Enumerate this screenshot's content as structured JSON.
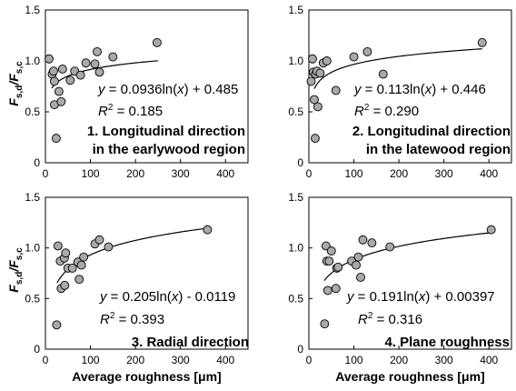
{
  "chart_data": [
    {
      "type": "scatter",
      "panel": "1",
      "caption": [
        "1. Longitudinal direction",
        "in the earlywood region"
      ],
      "equation": {
        "prefix": "y = 0.0936ln(",
        "var": "x",
        "suffix": ") + 0.485"
      },
      "r2": {
        "label": "R",
        "sup": "2",
        "value": " = 0.185"
      },
      "fit": {
        "a": 0.0936,
        "b": 0.485,
        "x_range": [
          14,
          250
        ]
      },
      "xlabel": "",
      "ylabel": {
        "main": "F",
        "sub1": "s,d",
        "slash": "/F",
        "sub2": "s,c"
      },
      "xlim": [
        0,
        450
      ],
      "ylim": [
        0,
        1.5
      ],
      "xticks": [
        "0",
        "100",
        "200",
        "300",
        "400"
      ],
      "yticks": [
        "0",
        "0.5",
        "1.0",
        "1.5"
      ],
      "points": [
        [
          8,
          1.02
        ],
        [
          15,
          0.87
        ],
        [
          18,
          0.9
        ],
        [
          20,
          0.57
        ],
        [
          20,
          0.8
        ],
        [
          24,
          0.24
        ],
        [
          30,
          0.7
        ],
        [
          35,
          0.6
        ],
        [
          38,
          0.92
        ],
        [
          55,
          0.81
        ],
        [
          65,
          0.9
        ],
        [
          78,
          0.86
        ],
        [
          90,
          0.98
        ],
        [
          110,
          0.97
        ],
        [
          115,
          1.09
        ],
        [
          120,
          0.89
        ],
        [
          150,
          1.04
        ],
        [
          248,
          1.18
        ]
      ]
    },
    {
      "type": "scatter",
      "panel": "2",
      "caption": [
        "2. Longitudinal direction",
        "in the latewood region"
      ],
      "equation": {
        "prefix": "y = 0.113ln(",
        "var": "x",
        "suffix": ") + 0.446"
      },
      "r2": {
        "label": "R",
        "sup": "2",
        "value": " = 0.290"
      },
      "fit": {
        "a": 0.113,
        "b": 0.446,
        "x_range": [
          12,
          385
        ]
      },
      "xlabel": "",
      "ylabel": {
        "main": "",
        "sub1": "",
        "slash": "",
        "sub2": ""
      },
      "xlim": [
        0,
        450
      ],
      "ylim": [
        0,
        1.5
      ],
      "xticks": [
        "0",
        "100",
        "200",
        "300",
        "400"
      ],
      "yticks": [
        "0",
        "0.5",
        "1.0",
        "1.5"
      ],
      "points": [
        [
          5,
          0.8
        ],
        [
          8,
          1.02
        ],
        [
          10,
          0.89
        ],
        [
          12,
          0.62
        ],
        [
          14,
          0.24
        ],
        [
          15,
          0.87
        ],
        [
          18,
          0.9
        ],
        [
          20,
          0.55
        ],
        [
          25,
          0.88
        ],
        [
          32,
          0.98
        ],
        [
          40,
          1.0
        ],
        [
          60,
          0.71
        ],
        [
          100,
          1.04
        ],
        [
          130,
          1.09
        ],
        [
          165,
          0.87
        ],
        [
          385,
          1.18
        ]
      ]
    },
    {
      "type": "scatter",
      "panel": "3",
      "caption": [
        "3. Radial direction"
      ],
      "equation": {
        "prefix": "y = 0.205ln(",
        "var": "x",
        "suffix": ") - 0.0119"
      },
      "r2": {
        "label": "R",
        "sup": "2",
        "value": " = 0.393"
      },
      "fit": {
        "a": 0.205,
        "b": -0.0119,
        "x_range": [
          26,
          360
        ]
      },
      "xlabel": "Average roughness [μm]",
      "ylabel": {
        "main": "F",
        "sub1": "s,d",
        "slash": "/F",
        "sub2": "s,c"
      },
      "xlim": [
        0,
        450
      ],
      "ylim": [
        0,
        1.5
      ],
      "xticks": [
        "0",
        "100",
        "200",
        "300",
        "400"
      ],
      "yticks": [
        "0",
        "0.5",
        "1.0",
        "1.5"
      ],
      "points": [
        [
          25,
          0.24
        ],
        [
          28,
          1.02
        ],
        [
          33,
          0.87
        ],
        [
          35,
          0.6
        ],
        [
          42,
          0.9
        ],
        [
          43,
          0.63
        ],
        [
          45,
          0.95
        ],
        [
          50,
          0.8
        ],
        [
          60,
          0.8
        ],
        [
          72,
          0.86
        ],
        [
          75,
          0.69
        ],
        [
          80,
          0.83
        ],
        [
          85,
          0.91
        ],
        [
          110,
          1.04
        ],
        [
          120,
          1.08
        ],
        [
          140,
          1.01
        ],
        [
          360,
          1.18
        ]
      ]
    },
    {
      "type": "scatter",
      "panel": "4",
      "caption": [
        "4. Plane roughness"
      ],
      "equation": {
        "prefix": "y = 0.191ln(",
        "var": "x",
        "suffix": ") + 0.00397"
      },
      "r2": {
        "label": "R",
        "sup": "2",
        "value": " = 0.316"
      },
      "fit": {
        "a": 0.191,
        "b": 0.00397,
        "x_range": [
          34,
          405
        ]
      },
      "xlabel": "Average roughness [μm]",
      "ylabel": {
        "main": "",
        "sub1": "",
        "slash": "",
        "sub2": ""
      },
      "xlim": [
        0,
        450
      ],
      "ylim": [
        0,
        1.5
      ],
      "xticks": [
        "0",
        "100",
        "200",
        "300",
        "400"
      ],
      "yticks": [
        "0",
        "0.5",
        "1.0",
        "1.5"
      ],
      "points": [
        [
          35,
          0.25
        ],
        [
          38,
          1.02
        ],
        [
          40,
          0.87
        ],
        [
          42,
          0.58
        ],
        [
          45,
          0.87
        ],
        [
          50,
          0.97
        ],
        [
          60,
          0.6
        ],
        [
          62,
          0.8
        ],
        [
          65,
          0.81
        ],
        [
          95,
          0.87
        ],
        [
          105,
          0.83
        ],
        [
          110,
          0.91
        ],
        [
          115,
          0.71
        ],
        [
          120,
          1.08
        ],
        [
          140,
          1.05
        ],
        [
          180,
          1.01
        ],
        [
          405,
          1.18
        ]
      ]
    }
  ]
}
